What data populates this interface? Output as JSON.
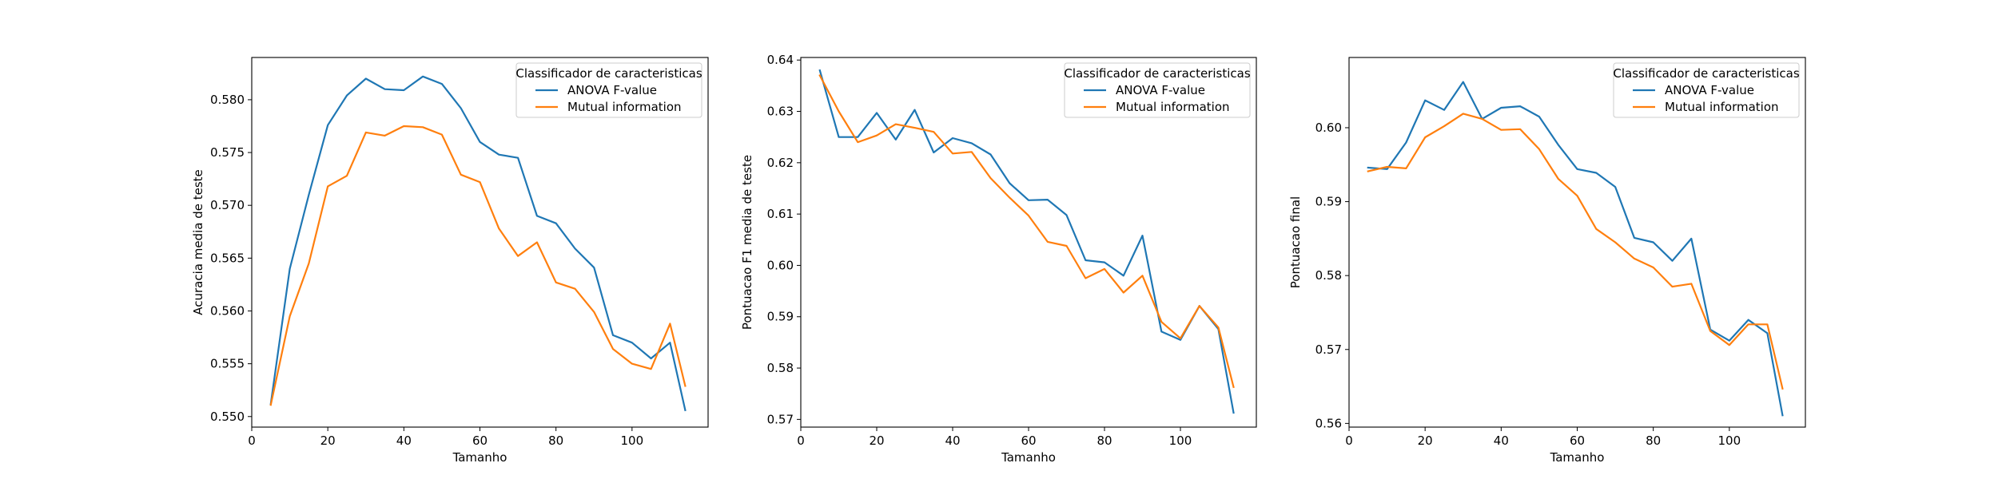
{
  "chart_data": [
    {
      "type": "line",
      "xlabel": "Tamanho",
      "ylabel": "Acuracia media de teste",
      "xlim": [
        0,
        120
      ],
      "ylim": [
        0.549,
        0.584
      ],
      "xticks": [
        0,
        20,
        40,
        60,
        80,
        100
      ],
      "yticks": [
        0.55,
        0.555,
        0.56,
        0.565,
        0.57,
        0.575,
        0.58
      ],
      "ytick_decimals": 3,
      "legend": {
        "title": "Classificador de caracteristicas",
        "position": "top-right"
      },
      "x": [
        5,
        10,
        15,
        20,
        25,
        30,
        35,
        40,
        45,
        50,
        55,
        60,
        65,
        70,
        75,
        80,
        85,
        90,
        95,
        100,
        105,
        110,
        114
      ],
      "series": [
        {
          "name": "ANOVA F-value",
          "color": "#1f77b4",
          "values": [
            0.5512,
            0.564,
            0.571,
            0.5776,
            0.5804,
            0.582,
            0.581,
            0.5809,
            0.5822,
            0.5815,
            0.5792,
            0.576,
            0.5748,
            0.5745,
            0.569,
            0.5683,
            0.5659,
            0.5641,
            0.5577,
            0.557,
            0.5555,
            0.557,
            0.5506
          ]
        },
        {
          "name": "Mutual information",
          "color": "#ff7f0e",
          "values": [
            0.5511,
            0.5595,
            0.5645,
            0.5718,
            0.5728,
            0.5769,
            0.5766,
            0.5775,
            0.5774,
            0.5767,
            0.5729,
            0.5722,
            0.5678,
            0.5652,
            0.5665,
            0.5627,
            0.5621,
            0.5599,
            0.5564,
            0.555,
            0.5545,
            0.5588,
            0.5529
          ]
        }
      ]
    },
    {
      "type": "line",
      "xlabel": "Tamanho",
      "ylabel": "Pontuacao F1 media de teste",
      "xlim": [
        0,
        120
      ],
      "ylim": [
        0.5685,
        0.6405
      ],
      "xticks": [
        0,
        20,
        40,
        60,
        80,
        100
      ],
      "yticks": [
        0.57,
        0.58,
        0.59,
        0.6,
        0.61,
        0.62,
        0.63,
        0.64
      ],
      "ytick_decimals": 2,
      "legend": {
        "title": "Classificador de caracteristicas",
        "position": "top-right"
      },
      "x": [
        5,
        10,
        15,
        20,
        25,
        30,
        35,
        40,
        45,
        50,
        55,
        60,
        65,
        70,
        75,
        80,
        85,
        90,
        95,
        100,
        105,
        110,
        114
      ],
      "series": [
        {
          "name": "ANOVA F-value",
          "color": "#1f77b4",
          "values": [
            0.638,
            0.625,
            0.625,
            0.6297,
            0.6245,
            0.6303,
            0.622,
            0.6248,
            0.6238,
            0.6216,
            0.616,
            0.6127,
            0.6128,
            0.6098,
            0.601,
            0.6006,
            0.598,
            0.6058,
            0.5871,
            0.5855,
            0.5921,
            0.5876,
            0.5713
          ]
        },
        {
          "name": "Mutual information",
          "color": "#ff7f0e",
          "values": [
            0.637,
            0.63,
            0.624,
            0.6253,
            0.6275,
            0.6268,
            0.626,
            0.6218,
            0.6221,
            0.617,
            0.6132,
            0.6097,
            0.6046,
            0.6038,
            0.5975,
            0.5993,
            0.5947,
            0.598,
            0.589,
            0.5858,
            0.5921,
            0.5879,
            0.5763
          ]
        }
      ]
    },
    {
      "type": "line",
      "xlabel": "Tamanho",
      "ylabel": "Pontuacao final",
      "xlim": [
        0,
        120
      ],
      "ylim": [
        0.5595,
        0.6095
      ],
      "xticks": [
        0,
        20,
        40,
        60,
        80,
        100
      ],
      "yticks": [
        0.56,
        0.57,
        0.58,
        0.59,
        0.6
      ],
      "ytick_decimals": 2,
      "legend": {
        "title": "Classificador de caracteristicas",
        "position": "top-right"
      },
      "x": [
        5,
        10,
        15,
        20,
        25,
        30,
        35,
        40,
        45,
        50,
        55,
        60,
        65,
        70,
        75,
        80,
        85,
        90,
        95,
        100,
        105,
        110,
        114
      ],
      "series": [
        {
          "name": "ANOVA F-value",
          "color": "#1f77b4",
          "values": [
            0.5946,
            0.5944,
            0.598,
            0.6037,
            0.6024,
            0.6062,
            0.6012,
            0.6027,
            0.6029,
            0.6015,
            0.5977,
            0.5944,
            0.5939,
            0.592,
            0.5851,
            0.5845,
            0.582,
            0.585,
            0.5727,
            0.5712,
            0.574,
            0.5722,
            0.5611
          ]
        },
        {
          "name": "Mutual information",
          "color": "#ff7f0e",
          "values": [
            0.5941,
            0.5947,
            0.5945,
            0.5987,
            0.6002,
            0.6019,
            0.6012,
            0.5997,
            0.5998,
            0.5971,
            0.5931,
            0.5908,
            0.5863,
            0.5845,
            0.5823,
            0.5811,
            0.5785,
            0.5789,
            0.5725,
            0.5706,
            0.5734,
            0.5734,
            0.5647
          ]
        }
      ]
    }
  ]
}
